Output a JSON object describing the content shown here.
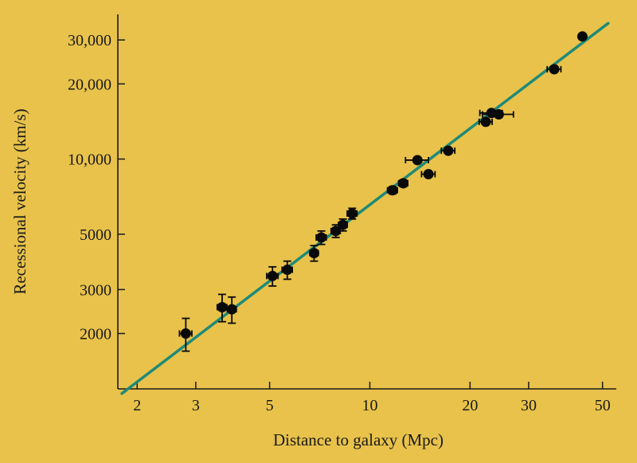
{
  "chart_data": {
    "type": "scatter",
    "title": "",
    "xlabel": "Distance to galaxy (Mpc)",
    "ylabel": "Recessional velocity (km/s)",
    "xscale": "log",
    "yscale": "log",
    "xlim": [
      1.75,
      55
    ],
    "ylim": [
      1200,
      38000
    ],
    "grid": false,
    "legend": "none",
    "x_ticks": [
      {
        "value": 2,
        "label": "2"
      },
      {
        "value": 3,
        "label": "3"
      },
      {
        "value": 5,
        "label": "5"
      },
      {
        "value": 10,
        "label": "10"
      },
      {
        "value": 20,
        "label": "20"
      },
      {
        "value": 30,
        "label": "30"
      },
      {
        "value": 50,
        "label": "50"
      }
    ],
    "y_ticks": [
      {
        "value": 2000,
        "label": "2000"
      },
      {
        "value": 3000,
        "label": "3000"
      },
      {
        "value": 5000,
        "label": "5000"
      },
      {
        "value": 10000,
        "label": "10,000"
      },
      {
        "value": 20000,
        "label": "20,000"
      },
      {
        "value": 30000,
        "label": "30,000"
      }
    ],
    "fit_line": {
      "points": [
        [
          1.8,
          1150
        ],
        [
          52,
          35000
        ]
      ],
      "color": "#1f8a78"
    },
    "points": [
      {
        "x": 2.8,
        "y": 2000,
        "xerr": 0.12,
        "yerr": 300
      },
      {
        "x": 3.6,
        "y": 2550,
        "xerr": 0.12,
        "yerr": 320
      },
      {
        "x": 3.85,
        "y": 2500,
        "xerr": 0.12,
        "yerr": 300
      },
      {
        "x": 5.1,
        "y": 3400,
        "xerr": 0.2,
        "yerr": 300
      },
      {
        "x": 5.65,
        "y": 3600,
        "xerr": 0.2,
        "yerr": 300
      },
      {
        "x": 6.8,
        "y": 4200,
        "xerr": 0.2,
        "yerr": 300
      },
      {
        "x": 7.15,
        "y": 4850,
        "xerr": 0.25,
        "yerr": 300
      },
      {
        "x": 7.9,
        "y": 5150,
        "xerr": 0.25,
        "yerr": 300
      },
      {
        "x": 8.3,
        "y": 5450,
        "xerr": 0.25,
        "yerr": 300
      },
      {
        "x": 8.85,
        "y": 6050,
        "xerr": 0.3,
        "yerr": 300
      },
      {
        "x": 11.7,
        "y": 7500,
        "xerr": 0.4,
        "yerr": 250
      },
      {
        "x": 12.6,
        "y": 8000,
        "xerr": 0.4,
        "yerr": 250
      },
      {
        "x": 13.9,
        "y": 9900,
        "xerr": 1.1,
        "yerr": 0
      },
      {
        "x": 15.0,
        "y": 8700,
        "xerr": 0.7,
        "yerr": 0
      },
      {
        "x": 17.2,
        "y": 10800,
        "xerr": 0.8,
        "yerr": 0
      },
      {
        "x": 22.3,
        "y": 14100,
        "xerr": 1.0,
        "yerr": 0
      },
      {
        "x": 23.2,
        "y": 15300,
        "xerr": 1.8,
        "yerr": 0
      },
      {
        "x": 24.4,
        "y": 15100,
        "xerr": 2.6,
        "yerr": 0
      },
      {
        "x": 35.8,
        "y": 22900,
        "xerr": 1.7,
        "yerr": 0
      },
      {
        "x": 43.5,
        "y": 31000,
        "xerr": 0,
        "yerr": 0
      }
    ],
    "colors": {
      "background": "#e8c24a",
      "axis": "#1a1a1a",
      "point": "#0a0a0a",
      "line": "#1f8a78"
    }
  }
}
